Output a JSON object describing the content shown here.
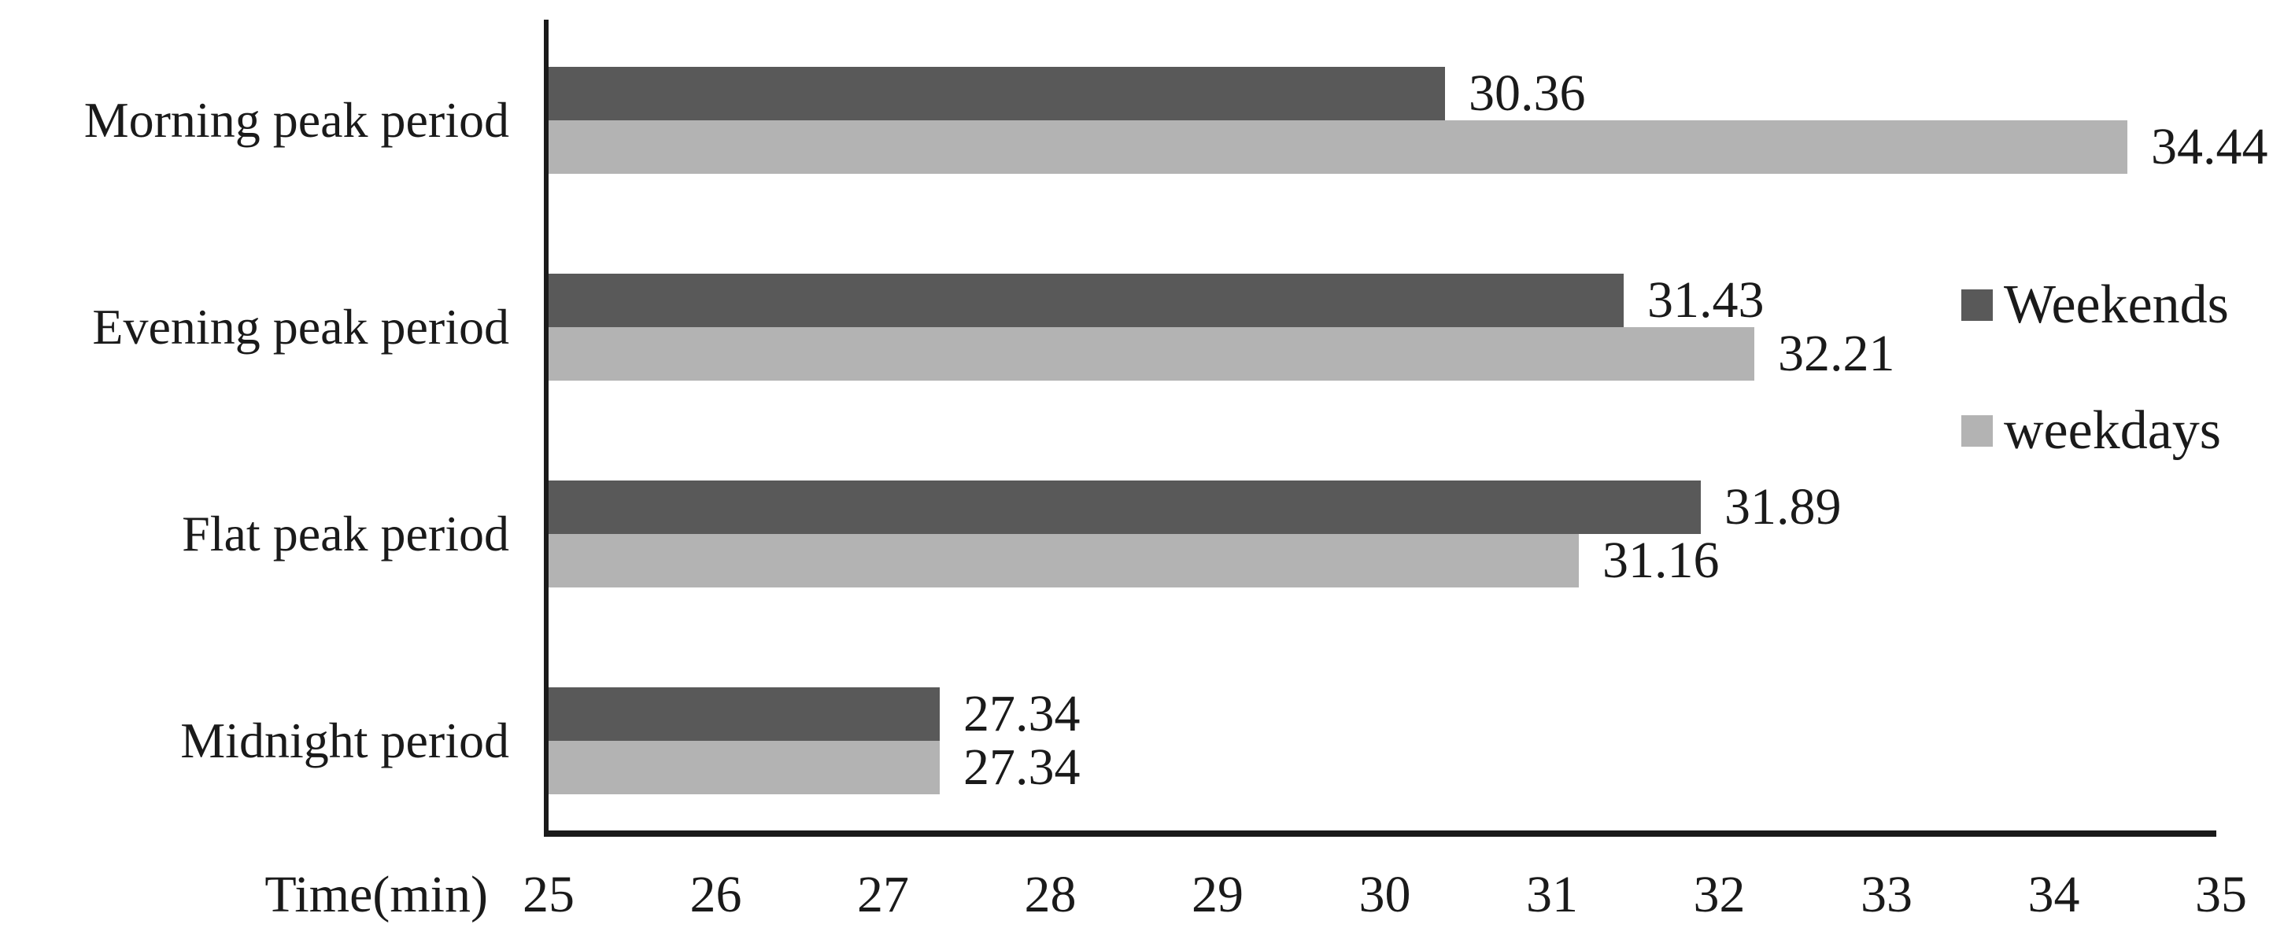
{
  "chart_data": {
    "type": "bar",
    "orientation": "horizontal",
    "title": "",
    "xlabel": "Time(min)",
    "ylabel": "",
    "categories": [
      "Morning peak period",
      "Evening peak period",
      "Flat peak period",
      "Midnight period"
    ],
    "series": [
      {
        "name": "Weekends",
        "color": "#595959",
        "values": [
          30.36,
          31.43,
          31.89,
          27.34
        ]
      },
      {
        "name": "weekdays",
        "color": "#b3b3b3",
        "values": [
          34.44,
          32.21,
          31.16,
          27.34
        ]
      }
    ],
    "value_labels": [
      [
        "30.36",
        "31.43",
        "31.89",
        "27.34"
      ],
      [
        "34.44",
        "32.21",
        "31.16",
        "27.34"
      ]
    ],
    "xlim": [
      25,
      35
    ],
    "x_ticks": [
      "25",
      "26",
      "27",
      "28",
      "29",
      "30",
      "31",
      "32",
      "33",
      "34",
      "35"
    ],
    "grid": "off",
    "legend_position": "right",
    "axis_color": "#1a1a1a",
    "background_color": "#ffffff"
  }
}
